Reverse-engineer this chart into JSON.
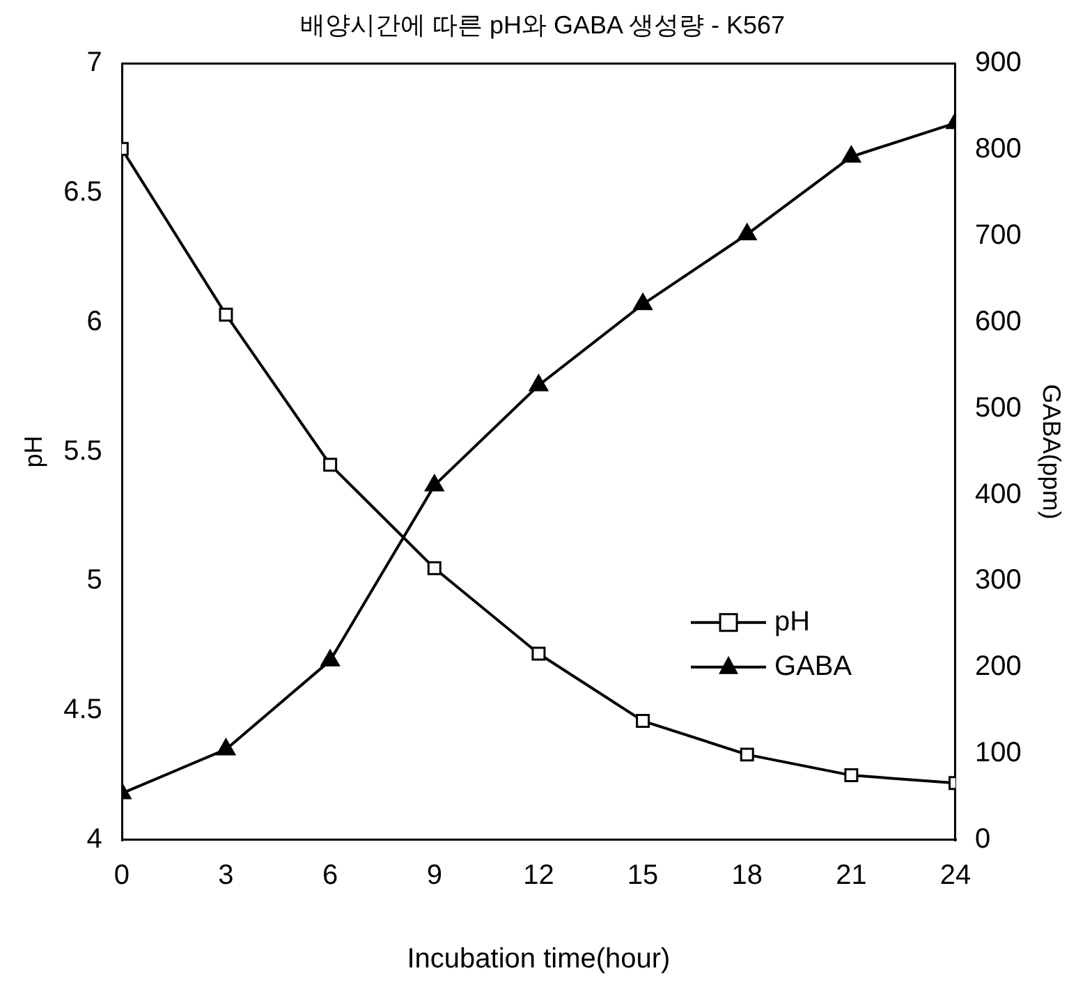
{
  "chart_data": {
    "type": "line",
    "title": "배양시간에 따른 pH와 GABA 생성량 - K567",
    "xlabel": "Incubation time(hour)",
    "ylabel": "pH",
    "y2label": "GABA(ppm)",
    "x": [
      0,
      3,
      6,
      9,
      12,
      15,
      18,
      21,
      24
    ],
    "xlim": [
      0,
      24
    ],
    "xticks": [
      0,
      3,
      6,
      9,
      12,
      15,
      18,
      21,
      24
    ],
    "ylim": [
      4,
      7
    ],
    "yticks": [
      4,
      {
        "value": 4.5,
        "label": "4.5"
      },
      5,
      {
        "value": 5.5,
        "label": "5.5"
      },
      6,
      {
        "value": 6.5,
        "label": "6.5"
      },
      7
    ],
    "y2lim": [
      0,
      900
    ],
    "y2ticks": [
      0,
      100,
      200,
      300,
      400,
      500,
      600,
      700,
      800,
      900
    ],
    "legend": "right",
    "grid": false,
    "series": [
      {
        "name": "pH",
        "color": "#000000",
        "marker": "square",
        "values": [
          6.67,
          6.03,
          5.45,
          5.05,
          4.72,
          4.46,
          4.33,
          4.25,
          4.22
        ]
      },
      {
        "name": "GABA",
        "color": "#000000",
        "marker": "triangle",
        "axis": "y2",
        "values": [
          54,
          105,
          208,
          411,
          527,
          621,
          702,
          792,
          831
        ]
      }
    ]
  }
}
